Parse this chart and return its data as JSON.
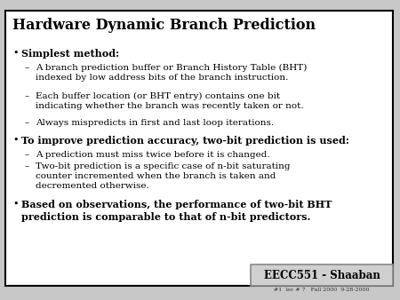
{
  "title": "Hardware Dynamic Branch Prediction",
  "bg_color": "#c8c8c8",
  "slide_bg": "#ffffff",
  "border_color": "#000000",
  "title_color": "#000000",
  "text_color": "#000000",
  "footer_text": "EECC551 - Shaaban",
  "footer_subtext": "#1  lec # 7   Fall 2000  9-28-2000",
  "items": [
    {
      "level": 0,
      "bold": true,
      "text": "Simplest method:"
    },
    {
      "level": 1,
      "bold": false,
      "text": "A branch prediction buffer or Branch History Table (BHT)\nindexed by low address bits of the branch instruction."
    },
    {
      "level": 1,
      "bold": false,
      "text": "Each buffer location (or BHT entry) contains one bit\nindicating whether the branch was recently taken or not."
    },
    {
      "level": 1,
      "bold": false,
      "text": "Always mispredicts in first and last loop iterations."
    },
    {
      "level": 0,
      "bold": true,
      "text": "To improve prediction accuracy, two-bit prediction is used:"
    },
    {
      "level": 1,
      "bold": false,
      "text": "A prediction must miss twice before it is changed."
    },
    {
      "level": 1,
      "bold": false,
      "text": "Two-bit prediction is a specific case of n-bit saturating\ncounter incremented when the branch is taken and\ndecremented otherwise."
    },
    {
      "level": 0,
      "bold": true,
      "text": "Based on observations, the performance of two-bit BHT\nprediction is comparable to that of n-bit predictors."
    }
  ],
  "title_fontsize": 11.5,
  "body_fontsize_l0": 8.0,
  "body_fontsize_l1": 7.5,
  "footer_fontsize": 8.5,
  "footer_sub_fontsize": 4.5
}
